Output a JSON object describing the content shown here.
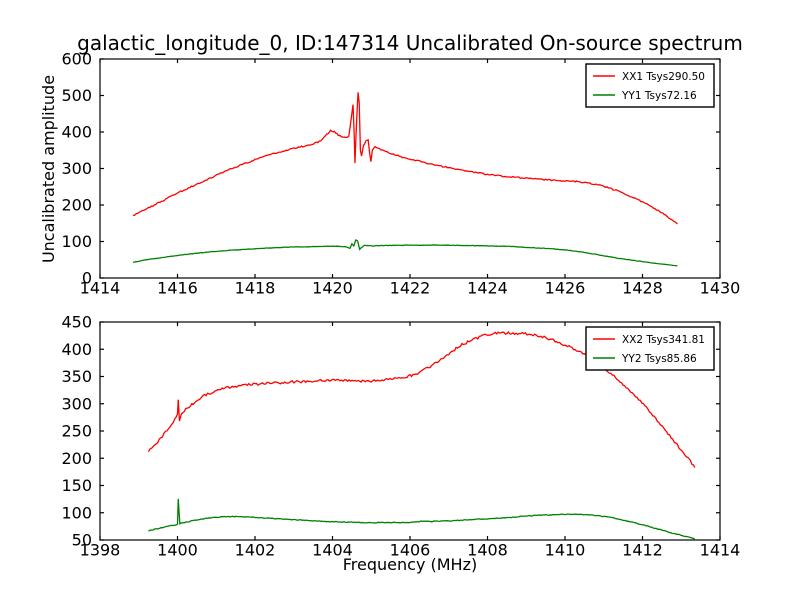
{
  "figure": {
    "background": "#ffffff",
    "text_color": "#000000"
  },
  "chart_data": [
    {
      "type": "line",
      "id": "top-spectrum",
      "title": "galactic_longitude_0, ID:147314 Uncalibrated On-source spectrum",
      "xlabel": "",
      "ylabel": "Uncalibrated amplitude",
      "xlim": [
        1414,
        1430
      ],
      "ylim": [
        0,
        600
      ],
      "xticks": [
        1414,
        1416,
        1418,
        1420,
        1422,
        1424,
        1426,
        1428,
        1430
      ],
      "yticks": [
        0,
        100,
        200,
        300,
        400,
        500,
        600
      ],
      "grid": false,
      "legend": {
        "position": "upper right",
        "entries": [
          {
            "label": "XX1 Tsys290.50",
            "color": "#ff0000"
          },
          {
            "label": "YY1 Tsys72.16",
            "color": "#008000"
          }
        ]
      },
      "series": [
        {
          "name": "XX1",
          "color": "#ff0000",
          "noise": 1.8,
          "points": [
            [
              1414.85,
              170
            ],
            [
              1415.1,
              184
            ],
            [
              1415.4,
              200
            ],
            [
              1415.7,
              216
            ],
            [
              1416.0,
              233
            ],
            [
              1416.4,
              252
            ],
            [
              1416.8,
              271
            ],
            [
              1417.2,
              291
            ],
            [
              1417.6,
              308
            ],
            [
              1418.0,
              324
            ],
            [
              1418.4,
              338
            ],
            [
              1418.8,
              350
            ],
            [
              1419.2,
              360
            ],
            [
              1419.5,
              367
            ],
            [
              1419.7,
              376
            ],
            [
              1419.85,
              393
            ],
            [
              1419.95,
              404
            ],
            [
              1420.05,
              401
            ],
            [
              1420.15,
              391
            ],
            [
              1420.3,
              385
            ],
            [
              1420.42,
              388
            ],
            [
              1420.5,
              452
            ],
            [
              1420.53,
              474
            ],
            [
              1420.56,
              392
            ],
            [
              1420.58,
              316
            ],
            [
              1420.61,
              400
            ],
            [
              1420.64,
              470
            ],
            [
              1420.66,
              508
            ],
            [
              1420.69,
              478
            ],
            [
              1420.72,
              350
            ],
            [
              1420.75,
              336
            ],
            [
              1420.8,
              362
            ],
            [
              1420.86,
              376
            ],
            [
              1420.92,
              378
            ],
            [
              1420.96,
              340
            ],
            [
              1420.99,
              318
            ],
            [
              1421.03,
              350
            ],
            [
              1421.1,
              360
            ],
            [
              1421.25,
              352
            ],
            [
              1421.5,
              341
            ],
            [
              1421.8,
              331
            ],
            [
              1422.1,
              324
            ],
            [
              1422.5,
              313
            ],
            [
              1423.0,
              302
            ],
            [
              1423.5,
              293
            ],
            [
              1424.0,
              284
            ],
            [
              1424.5,
              278
            ],
            [
              1425.0,
              273
            ],
            [
              1425.5,
              269
            ],
            [
              1426.0,
              266
            ],
            [
              1426.3,
              264
            ],
            [
              1426.6,
              261
            ],
            [
              1427.0,
              251
            ],
            [
              1427.4,
              237
            ],
            [
              1427.8,
              219
            ],
            [
              1428.2,
              197
            ],
            [
              1428.6,
              172
            ],
            [
              1428.9,
              148
            ]
          ]
        },
        {
          "name": "YY1",
          "color": "#008000",
          "noise": 0.6,
          "points": [
            [
              1414.85,
              43
            ],
            [
              1415.2,
              50
            ],
            [
              1415.6,
              56
            ],
            [
              1416.0,
              62
            ],
            [
              1416.5,
              68
            ],
            [
              1417.0,
              73
            ],
            [
              1417.5,
              77
            ],
            [
              1418.0,
              80
            ],
            [
              1418.5,
              83
            ],
            [
              1419.0,
              85
            ],
            [
              1419.5,
              86
            ],
            [
              1419.9,
              87
            ],
            [
              1420.2,
              87
            ],
            [
              1420.35,
              85
            ],
            [
              1420.45,
              81
            ],
            [
              1420.5,
              94
            ],
            [
              1420.55,
              88
            ],
            [
              1420.6,
              104
            ],
            [
              1420.65,
              101
            ],
            [
              1420.7,
              79
            ],
            [
              1420.76,
              84
            ],
            [
              1420.83,
              90
            ],
            [
              1421.0,
              88
            ],
            [
              1421.4,
              89
            ],
            [
              1421.9,
              90
            ],
            [
              1422.4,
              90
            ],
            [
              1423.0,
              90
            ],
            [
              1423.5,
              89
            ],
            [
              1424.0,
              88
            ],
            [
              1424.5,
              87
            ],
            [
              1425.0,
              84
            ],
            [
              1425.5,
              81
            ],
            [
              1426.0,
              77
            ],
            [
              1426.5,
              70
            ],
            [
              1427.0,
              61
            ],
            [
              1427.5,
              52
            ],
            [
              1428.0,
              45
            ],
            [
              1428.5,
              38
            ],
            [
              1428.9,
              33
            ]
          ]
        }
      ]
    },
    {
      "type": "line",
      "id": "bottom-spectrum",
      "title": "",
      "xlabel": "Frequency (MHz)",
      "ylabel": "",
      "xlim": [
        1398,
        1414
      ],
      "ylim": [
        50,
        450
      ],
      "xticks": [
        1398,
        1400,
        1402,
        1404,
        1406,
        1408,
        1410,
        1412,
        1414
      ],
      "yticks": [
        50,
        100,
        150,
        200,
        250,
        300,
        350,
        400,
        450
      ],
      "grid": false,
      "legend": {
        "position": "upper right",
        "entries": [
          {
            "label": "XX2 Tsys341.81",
            "color": "#ff0000"
          },
          {
            "label": "YY2 Tsys85.86",
            "color": "#008000"
          }
        ]
      },
      "series": [
        {
          "name": "XX2",
          "color": "#ff0000",
          "noise": 2.2,
          "points": [
            [
              1399.25,
              212
            ],
            [
              1399.45,
              227
            ],
            [
              1399.65,
              244
            ],
            [
              1399.85,
              263
            ],
            [
              1399.97,
              277
            ],
            [
              1400.0,
              283
            ],
            [
              1400.02,
              308
            ],
            [
              1400.05,
              270
            ],
            [
              1400.1,
              281
            ],
            [
              1400.25,
              292
            ],
            [
              1400.45,
              303
            ],
            [
              1400.7,
              315
            ],
            [
              1401.0,
              324
            ],
            [
              1401.3,
              330
            ],
            [
              1401.6,
              333
            ],
            [
              1402.0,
              336
            ],
            [
              1402.5,
              338
            ],
            [
              1403.0,
              340
            ],
            [
              1403.5,
              342
            ],
            [
              1404.0,
              343
            ],
            [
              1404.35,
              342
            ],
            [
              1404.7,
              341
            ],
            [
              1405.0,
              342
            ],
            [
              1405.4,
              344
            ],
            [
              1405.8,
              348
            ],
            [
              1406.2,
              355
            ],
            [
              1406.6,
              372
            ],
            [
              1407.0,
              392
            ],
            [
              1407.3,
              407
            ],
            [
              1407.6,
              417
            ],
            [
              1407.9,
              425
            ],
            [
              1408.2,
              429
            ],
            [
              1408.5,
              430
            ],
            [
              1408.9,
              429
            ],
            [
              1409.3,
              425
            ],
            [
              1409.7,
              417
            ],
            [
              1410.1,
              405
            ],
            [
              1410.5,
              390
            ],
            [
              1410.9,
              371
            ],
            [
              1411.3,
              348
            ],
            [
              1411.7,
              322
            ],
            [
              1412.1,
              293
            ],
            [
              1412.5,
              260
            ],
            [
              1412.9,
              224
            ],
            [
              1413.2,
              198
            ],
            [
              1413.35,
              183
            ]
          ]
        },
        {
          "name": "YY2",
          "color": "#008000",
          "noise": 0.7,
          "points": [
            [
              1399.25,
              67
            ],
            [
              1399.5,
              71
            ],
            [
              1399.75,
              75
            ],
            [
              1399.95,
              78
            ],
            [
              1400.0,
              79
            ],
            [
              1400.02,
              125
            ],
            [
              1400.06,
              80
            ],
            [
              1400.3,
              84
            ],
            [
              1400.6,
              88
            ],
            [
              1400.9,
              91
            ],
            [
              1401.2,
              93
            ],
            [
              1401.5,
              93
            ],
            [
              1401.9,
              92
            ],
            [
              1402.3,
              90
            ],
            [
              1402.8,
              88
            ],
            [
              1403.3,
              86
            ],
            [
              1403.8,
              84
            ],
            [
              1404.3,
              83
            ],
            [
              1404.8,
              82
            ],
            [
              1405.3,
              82
            ],
            [
              1405.8,
              82
            ],
            [
              1406.2,
              83
            ],
            [
              1406.35,
              85
            ],
            [
              1406.5,
              84
            ],
            [
              1407.0,
              85
            ],
            [
              1407.5,
              87
            ],
            [
              1408.0,
              89
            ],
            [
              1408.5,
              91
            ],
            [
              1409.0,
              94
            ],
            [
              1409.5,
              96
            ],
            [
              1410.0,
              97
            ],
            [
              1410.4,
              97
            ],
            [
              1410.8,
              95
            ],
            [
              1411.2,
              91
            ],
            [
              1411.6,
              85
            ],
            [
              1412.0,
              78
            ],
            [
              1412.4,
              70
            ],
            [
              1412.8,
              62
            ],
            [
              1413.1,
              57
            ],
            [
              1413.35,
              52
            ]
          ]
        }
      ]
    }
  ]
}
